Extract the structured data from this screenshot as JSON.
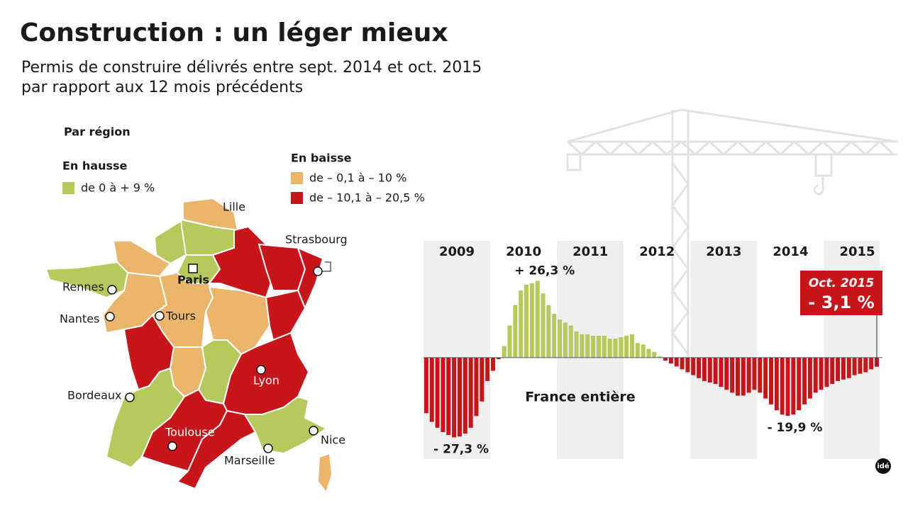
{
  "header": {
    "title": "Construction : un léger mieux",
    "subtitle": [
      "Permis de construire délivrés entre sept. 2014 et oct. 2015",
      "par rapport aux 12 mois précédents"
    ]
  },
  "map": {
    "heading": "Par région",
    "legend_up_title": "En hausse",
    "legend_down_title": "En baisse",
    "legend": [
      {
        "label": "de 0 à + 9 %",
        "color": "#b5c95c"
      },
      {
        "label": "de – 0,1 à – 10 %",
        "color": "#ecb56c"
      },
      {
        "label": "de – 10,1 à – 20,5 %",
        "color": "#c8151b"
      }
    ],
    "cities": [
      "Lille",
      "Strasbourg",
      "Rennes",
      "Paris",
      "Nantes",
      "Tours",
      "Lyon",
      "Bordeaux",
      "Toulouse",
      "Nice",
      "Marseille"
    ]
  },
  "chart_data": {
    "type": "bar",
    "subtitle": "France entière",
    "years": [
      "2009",
      "2010",
      "2011",
      "2012",
      "2013",
      "2014",
      "2015"
    ],
    "values": [
      -19,
      -22,
      -24,
      -25.5,
      -26.5,
      -27.3,
      -27,
      -26,
      -24,
      -20,
      -15,
      -8,
      -4.5,
      -0.5,
      4,
      11,
      18,
      23,
      25,
      25.5,
      26.3,
      22,
      18,
      15,
      13,
      12,
      11,
      9,
      8,
      8,
      7.5,
      7.5,
      7.5,
      6.5,
      6.5,
      7,
      7.5,
      8,
      5,
      4.5,
      3,
      2,
      0.5,
      -1,
      -2,
      -3,
      -4,
      -5,
      -6,
      -7,
      -8,
      -8.5,
      -9,
      -10,
      -11,
      -12,
      -13,
      -13,
      -12,
      -11,
      -12,
      -14,
      -16,
      -18,
      -19.5,
      -19.9,
      -19.5,
      -18,
      -16,
      -14,
      -12,
      -11,
      -10,
      -9,
      -8,
      -7.5,
      -7,
      -6,
      -5.5,
      -5,
      -4,
      -3.1
    ],
    "value_labels": [
      null,
      null,
      null,
      null,
      null,
      "- 27,3 %",
      null,
      null,
      null,
      null,
      null,
      null,
      null,
      null,
      null,
      null,
      null,
      null,
      null,
      null,
      "+ 26,3 %",
      null,
      null,
      null,
      null,
      null,
      null,
      null,
      null,
      null,
      null,
      null,
      null,
      null,
      null,
      null,
      null,
      null,
      null,
      null,
      null,
      null,
      null,
      null,
      null,
      null,
      null,
      null,
      null,
      null,
      null,
      null,
      null,
      null,
      null,
      null,
      null,
      null,
      null,
      null,
      null,
      null,
      null,
      null,
      null,
      "- 19,9 %",
      null,
      null,
      null,
      null,
      null,
      null,
      null,
      null,
      null,
      null,
      null,
      null,
      null,
      null,
      null,
      "- 3,1 %"
    ],
    "highlight_label": "Oct. 2015",
    "positive_color": "#b5c95c",
    "negative_color": "#c8151b",
    "ylim": [
      -34.7,
      40
    ]
  }
}
